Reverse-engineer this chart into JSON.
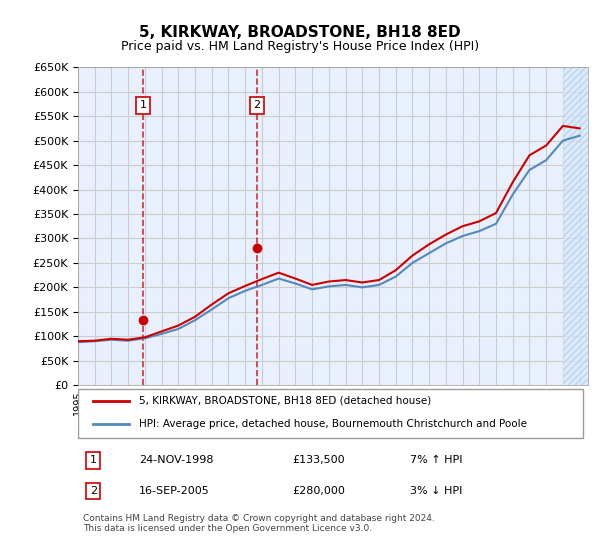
{
  "title": "5, KIRKWAY, BROADSTONE, BH18 8ED",
  "subtitle": "Price paid vs. HM Land Registry's House Price Index (HPI)",
  "ylabel": "",
  "ylim": [
    0,
    650000
  ],
  "yticks": [
    0,
    50000,
    100000,
    150000,
    200000,
    250000,
    300000,
    350000,
    400000,
    450000,
    500000,
    550000,
    600000,
    650000
  ],
  "xlim_start": 1995.0,
  "xlim_end": 2025.5,
  "bg_color": "#ffffff",
  "grid_color": "#cccccc",
  "plot_bg": "#e8f0fe",
  "transactions": [
    {
      "year": 1998.9,
      "price": 133500,
      "label": "1"
    },
    {
      "year": 2005.71,
      "price": 280000,
      "label": "2"
    }
  ],
  "transaction_color": "#cc0000",
  "hpi_color": "#6699cc",
  "hpi_line_color": "#5588bb",
  "legend_label_red": "5, KIRKWAY, BROADSTONE, BH18 8ED (detached house)",
  "legend_label_blue": "HPI: Average price, detached house, Bournemouth Christchurch and Poole",
  "table_rows": [
    {
      "num": "1",
      "date": "24-NOV-1998",
      "price": "£133,500",
      "change": "7% ↑ HPI"
    },
    {
      "num": "2",
      "date": "16-SEP-2005",
      "price": "£280,000",
      "change": "3% ↓ HPI"
    }
  ],
  "footnote": "Contains HM Land Registry data © Crown copyright and database right 2024.\nThis data is licensed under the Open Government Licence v3.0.",
  "hpi_years": [
    1995,
    1996,
    1997,
    1998,
    1999,
    2000,
    2001,
    2002,
    2003,
    2004,
    2005,
    2006,
    2007,
    2008,
    2009,
    2010,
    2011,
    2012,
    2013,
    2014,
    2015,
    2016,
    2017,
    2018,
    2019,
    2020,
    2021,
    2022,
    2023,
    2024,
    2025
  ],
  "hpi_values": [
    88000,
    90000,
    93000,
    91000,
    96000,
    105000,
    115000,
    133000,
    155000,
    178000,
    193000,
    205000,
    218000,
    208000,
    196000,
    202000,
    205000,
    200000,
    205000,
    222000,
    250000,
    270000,
    290000,
    305000,
    315000,
    330000,
    390000,
    440000,
    460000,
    500000,
    510000
  ],
  "price_years": [
    1995,
    1996,
    1997,
    1998,
    1999,
    2000,
    2001,
    2002,
    2003,
    2004,
    2005,
    2006,
    2007,
    2008,
    2009,
    2010,
    2011,
    2012,
    2013,
    2014,
    2015,
    2016,
    2017,
    2018,
    2019,
    2020,
    2021,
    2022,
    2023,
    2024,
    2025
  ],
  "price_values": [
    90000,
    91000,
    95000,
    93000,
    98000,
    110000,
    122000,
    140000,
    165000,
    188000,
    203000,
    217000,
    230000,
    218000,
    205000,
    212000,
    215000,
    210000,
    215000,
    235000,
    265000,
    288000,
    308000,
    325000,
    335000,
    352000,
    415000,
    470000,
    490000,
    530000,
    525000
  ],
  "hatch_start": 2024.0
}
